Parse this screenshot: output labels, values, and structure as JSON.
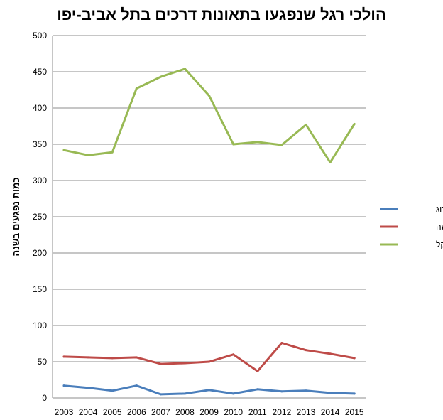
{
  "chart_data": {
    "type": "line",
    "title": "הולכי רגל שנפגעו בתאונות דרכים בתל אביב-יפו",
    "ylabel": "כמות נפגעים בשנה",
    "xlabel": "",
    "ylim": [
      0,
      500
    ],
    "yticks": [
      0,
      50,
      100,
      150,
      200,
      250,
      300,
      350,
      400,
      450,
      500
    ],
    "grid": true,
    "legend_position": "right",
    "categories": [
      "2003",
      "2004",
      "2005",
      "2006",
      "2007",
      "2008",
      "2009",
      "2010",
      "2011",
      "2012",
      "2013",
      "2014",
      "2015"
    ],
    "series": [
      {
        "name": "הרוג",
        "color": "#4a7ebb",
        "values": [
          17,
          14,
          10,
          17,
          5,
          6,
          11,
          6,
          12,
          9,
          10,
          7,
          6
        ]
      },
      {
        "name": "פצוע קשה",
        "color": "#be4b48",
        "values": [
          57,
          56,
          55,
          56,
          47,
          48,
          50,
          60,
          37,
          76,
          66,
          61,
          55
        ]
      },
      {
        "name": "פצוע קל",
        "color": "#98b954",
        "values": [
          342,
          335,
          339,
          427,
          443,
          454,
          417,
          350,
          353,
          349,
          377,
          325,
          378
        ]
      }
    ]
  }
}
